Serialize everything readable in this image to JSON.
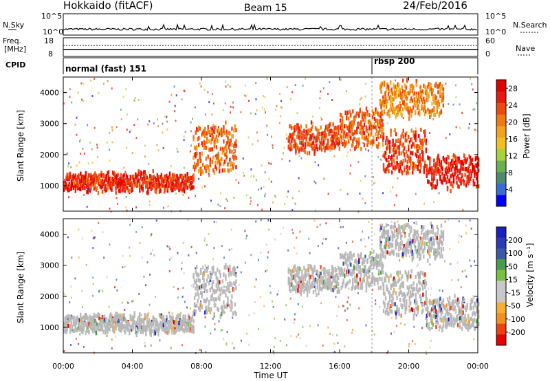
{
  "header": {
    "radar": "Hokkaido (fitACF)",
    "beam": "Beam 15",
    "date": "24/Feb/2016"
  },
  "noise_panel": {
    "left_label": "N.Sky",
    "right_label": "N.Search",
    "left_ticks": [
      "10^5",
      "10^0"
    ],
    "right_ticks": [
      "10^5",
      "10^0"
    ]
  },
  "freq_panel": {
    "left_label_1": "Freq.",
    "left_label_2": "[MHz]",
    "left_ticks": [
      "18",
      "8"
    ],
    "right_ticks": [
      "60",
      "0"
    ],
    "right_label": "Nave"
  },
  "cpid_panel": {
    "label": "CPID",
    "modes": [
      {
        "name": "normal (fast) 151",
        "start_hour": 0
      },
      {
        "name": "rbsp 200",
        "start_hour": 18.0
      }
    ]
  },
  "colors": {
    "power": [
      "#0000ff",
      "#3a6ad6",
      "#4f8a6e",
      "#6ab04c",
      "#a6d23a",
      "#f0c020",
      "#f5a01e",
      "#f07a10",
      "#ee4a10",
      "#e81a10",
      "#e00000"
    ],
    "velocity": [
      "#e80000",
      "#f04010",
      "#f5901e",
      "#f5b030",
      "#c8c8c8",
      "#c8c8c8",
      "#78c040",
      "#4a9a50",
      "#3a5aa8",
      "#2a3ab8",
      "#1a20c0"
    ],
    "ground": "#b8b8b8"
  },
  "chart_data": [
    {
      "type": "heatmap",
      "name": "power",
      "ylabel": "Slant Range [km]",
      "colorbar_label": "Power [dB]",
      "colorbar_ticks": [
        4,
        8,
        12,
        16,
        20,
        24,
        28
      ],
      "colorbar_range": [
        0,
        30
      ],
      "ylim": [
        180,
        4500
      ],
      "yticks": [
        1000,
        2000,
        3000,
        4000
      ],
      "xlim_hours": [
        0,
        24
      ],
      "scatter_bands": [
        {
          "t_start": 0.0,
          "t_end": 7.5,
          "range_low": 850,
          "range_high": 1500,
          "power": 26
        },
        {
          "t_start": 7.5,
          "t_end": 10.0,
          "range_low": 1300,
          "range_high": 3200,
          "power": 22
        },
        {
          "t_start": 13.0,
          "t_end": 16.0,
          "range_low": 2100,
          "range_high": 3100,
          "power": 24
        },
        {
          "t_start": 16.0,
          "t_end": 18.5,
          "range_low": 2200,
          "range_high": 3600,
          "power": 23
        },
        {
          "t_start": 18.5,
          "t_end": 21.0,
          "range_low": 1300,
          "range_high": 3000,
          "power": 25
        },
        {
          "t_start": 21.0,
          "t_end": 24.0,
          "range_low": 900,
          "range_high": 2100,
          "power": 27
        },
        {
          "t_start": 18.3,
          "t_end": 22.0,
          "range_low": 3200,
          "range_high": 4500,
          "power": 20
        }
      ]
    },
    {
      "type": "heatmap",
      "name": "velocity",
      "ylabel": "Slant Range [km]",
      "colorbar_label": "Velocity [m s⁻¹]",
      "colorbar_ticks": [
        200,
        100,
        50,
        15,
        -15,
        -50,
        -100,
        -200
      ],
      "ylim": [
        180,
        4500
      ],
      "yticks": [
        1000,
        2000,
        3000,
        4000
      ],
      "xlim_hours": [
        0,
        24
      ],
      "xticks": [
        "00:00",
        "04:00",
        "08:00",
        "12:00",
        "16:00",
        "20:00",
        "00:00"
      ],
      "xlabel": "Time UT"
    }
  ]
}
